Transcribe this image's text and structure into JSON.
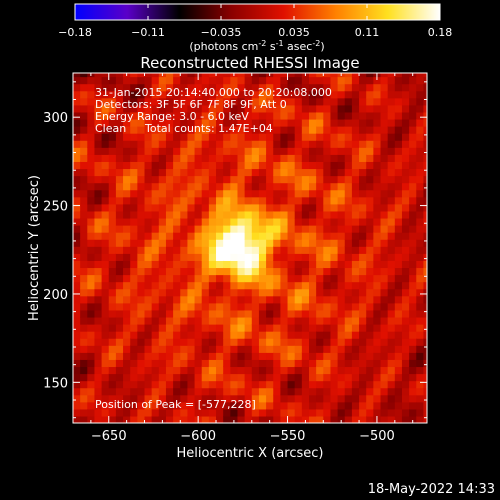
{
  "colorbar": {
    "ticks": [
      "-0.18",
      "-0.11",
      "-0.035",
      "0.035",
      "0.11",
      "0.18"
    ],
    "unit_main": "(photons cm",
    "unit_exp1": "-2",
    "unit_mid": " s",
    "unit_exp2": "-1",
    "unit_tail": " asec",
    "unit_exp3": "-2",
    "unit_close": ")"
  },
  "info": {
    "time_range": "31-Jan-2015 20:14:40.000 to 20:20:08.000",
    "detectors": "Detectors: 3F 5F 6F 7F 8F 9F, Att 0",
    "energy": "Energy Range: 3.0 - 6.0 keV",
    "method": "Clean",
    "counts": "Total counts: 1.47E+04",
    "peak": "Position of Peak = [-577,228]"
  },
  "footer": {
    "timestamp": "18-May-2022 14:33"
  },
  "chart_data": {
    "type": "heatmap",
    "title": "Reconstructed RHESSI Image",
    "xlabel": "Heliocentric X (arcsec)",
    "ylabel": "Heliocentric Y (arcsec)",
    "xlim": [
      -670,
      -472
    ],
    "ylim": [
      127,
      325
    ],
    "x_ticks": [
      -650,
      -600,
      -550,
      -500
    ],
    "y_ticks": [
      150,
      200,
      250,
      300
    ],
    "x_tick_labels": [
      "−650",
      "−600",
      "−550",
      "−500"
    ],
    "y_tick_labels": [
      "150",
      "200",
      "250",
      "300"
    ],
    "clim": [
      -0.18,
      0.18
    ],
    "peak": {
      "x": -577,
      "y": 228,
      "value": 0.18
    },
    "colormap": [
      "#0000ff",
      "#5a00c8",
      "#000000",
      "#8b0000",
      "#e01000",
      "#ff8000",
      "#ffe020",
      "#ffffff"
    ]
  }
}
